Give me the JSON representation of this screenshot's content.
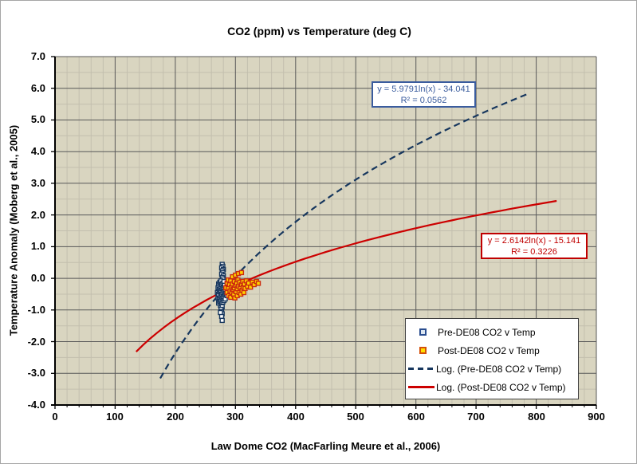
{
  "chart_data": {
    "type": "scatter",
    "title": "CO2 (ppm) vs Temperature (deg C)",
    "xlabel": "Law Dome CO2 (MacFarling Meure et al., 2006)",
    "ylabel": "Temperature Anomaly (Moberg et al., 2005)",
    "xlim": [
      0,
      900
    ],
    "ylim": [
      -4.0,
      7.0
    ],
    "x_ticks": [
      "0",
      "100",
      "200",
      "300",
      "400",
      "500",
      "600",
      "700",
      "800",
      "900"
    ],
    "y_ticks": [
      "7.0",
      "6.0",
      "5.0",
      "4.0",
      "3.0",
      "2.0",
      "1.0",
      "0.0",
      "-1.0",
      "-2.0",
      "-3.0",
      "-4.0"
    ],
    "x_minor_step": 20,
    "y_minor_step": 0.5,
    "grid": "major-and-minor",
    "legend_position": "bottom-right-inside",
    "colors": {
      "plot_bg": "#d9d5c0",
      "grid_major": "#595959",
      "grid_minor": "#c3bfae",
      "axis": "#000000",
      "pre_series_stroke": "#17375e",
      "pre_series_fill": "#ffffff",
      "post_series_stroke": "#cc2b0e",
      "post_series_fill": "#ffd400",
      "pre_trend": "#17375e",
      "post_trend": "#cc0000",
      "pre_eq_text": "#3a5c9e",
      "post_eq_text": "#c00000"
    },
    "series": [
      {
        "name": "Pre-DE08 CO2 v Temp",
        "marker": "open-square",
        "points": [
          [
            278,
            0.44
          ],
          [
            279,
            0.38
          ],
          [
            277,
            0.33
          ],
          [
            280,
            0.28
          ],
          [
            278,
            0.24
          ],
          [
            279,
            0.18
          ],
          [
            277,
            0.13
          ],
          [
            280,
            0.08
          ],
          [
            278,
            0.03
          ],
          [
            279,
            -0.02
          ],
          [
            270,
            -0.45
          ],
          [
            271,
            -0.3
          ],
          [
            271,
            -0.62
          ],
          [
            272,
            -0.18
          ],
          [
            272,
            -0.5
          ],
          [
            272,
            -0.78
          ],
          [
            273,
            -0.35
          ],
          [
            273,
            -0.65
          ],
          [
            274,
            -0.12
          ],
          [
            274,
            -0.42
          ],
          [
            274,
            -0.72
          ],
          [
            275,
            -0.25
          ],
          [
            275,
            -0.55
          ],
          [
            275,
            -0.85
          ],
          [
            276,
            -0.08
          ],
          [
            276,
            -0.38
          ],
          [
            276,
            -0.68
          ],
          [
            277,
            -0.2
          ],
          [
            277,
            -0.5
          ],
          [
            277,
            -0.8
          ],
          [
            278,
            -0.32
          ],
          [
            278,
            -0.62
          ],
          [
            278,
            -0.9
          ],
          [
            279,
            -0.15
          ],
          [
            279,
            -0.45
          ],
          [
            279,
            -0.75
          ],
          [
            280,
            -0.28
          ],
          [
            280,
            -0.58
          ],
          [
            281,
            -0.1
          ],
          [
            281,
            -0.4
          ],
          [
            281,
            -0.7
          ],
          [
            282,
            -0.22
          ],
          [
            282,
            -0.52
          ],
          [
            283,
            -0.35
          ],
          [
            283,
            -0.65
          ],
          [
            284,
            -0.48
          ],
          [
            285,
            -0.3
          ],
          [
            286,
            -0.55
          ],
          [
            276,
            -0.98
          ],
          [
            277,
            -1.05
          ],
          [
            278,
            -1.12
          ],
          [
            277,
            -1.2
          ],
          [
            278,
            -1.33
          ],
          [
            275,
            -1.08
          ]
        ]
      },
      {
        "name": "Post-DE08 CO2 v Temp",
        "marker": "filled-square",
        "points": [
          [
            284,
            -0.3
          ],
          [
            286,
            -0.15
          ],
          [
            286,
            -0.45
          ],
          [
            288,
            -0.05
          ],
          [
            288,
            -0.32
          ],
          [
            289,
            -0.55
          ],
          [
            290,
            -0.2
          ],
          [
            291,
            -0.4
          ],
          [
            292,
            -0.08
          ],
          [
            292,
            -0.6
          ],
          [
            293,
            -0.28
          ],
          [
            294,
            -0.45
          ],
          [
            295,
            0.05
          ],
          [
            295,
            -0.18
          ],
          [
            296,
            -0.35
          ],
          [
            297,
            -0.52
          ],
          [
            298,
            -0.1
          ],
          [
            298,
            -0.3
          ],
          [
            299,
            -0.62
          ],
          [
            300,
            0.1
          ],
          [
            300,
            -0.22
          ],
          [
            301,
            -0.42
          ],
          [
            302,
            -0.15
          ],
          [
            303,
            -0.33
          ],
          [
            303,
            -0.55
          ],
          [
            304,
            -0.05
          ],
          [
            305,
            0.15
          ],
          [
            305,
            -0.25
          ],
          [
            306,
            -0.45
          ],
          [
            307,
            -0.12
          ],
          [
            308,
            -0.3
          ],
          [
            309,
            -0.5
          ],
          [
            310,
            0.18
          ],
          [
            310,
            -0.2
          ],
          [
            311,
            -0.38
          ],
          [
            312,
            -0.1
          ],
          [
            313,
            -0.28
          ],
          [
            314,
            -0.45
          ],
          [
            315,
            -0.18
          ],
          [
            316,
            -0.32
          ],
          [
            318,
            -0.08
          ],
          [
            320,
            -0.25
          ],
          [
            322,
            -0.15
          ],
          [
            325,
            -0.28
          ],
          [
            328,
            -0.12
          ],
          [
            331,
            -0.2
          ],
          [
            335,
            -0.1
          ],
          [
            338,
            -0.16
          ]
        ]
      }
    ],
    "trendlines": [
      {
        "name": "Log. (Pre-DE08 CO2 v Temp)",
        "equation": "y = 5.9791ln(x) - 34.041",
        "r2": "R² = 0.0562",
        "a": 5.9791,
        "b": -34.041,
        "x_from": 175,
        "x_to": 784,
        "style": "dashed"
      },
      {
        "name": "Log. (Post-DE08 CO2 v Temp)",
        "equation": "y = 2.6142ln(x) - 15.141",
        "r2": "R² = 0.3226",
        "a": 2.6142,
        "b": -15.141,
        "x_from": 135,
        "x_to": 834,
        "style": "solid"
      }
    ]
  }
}
